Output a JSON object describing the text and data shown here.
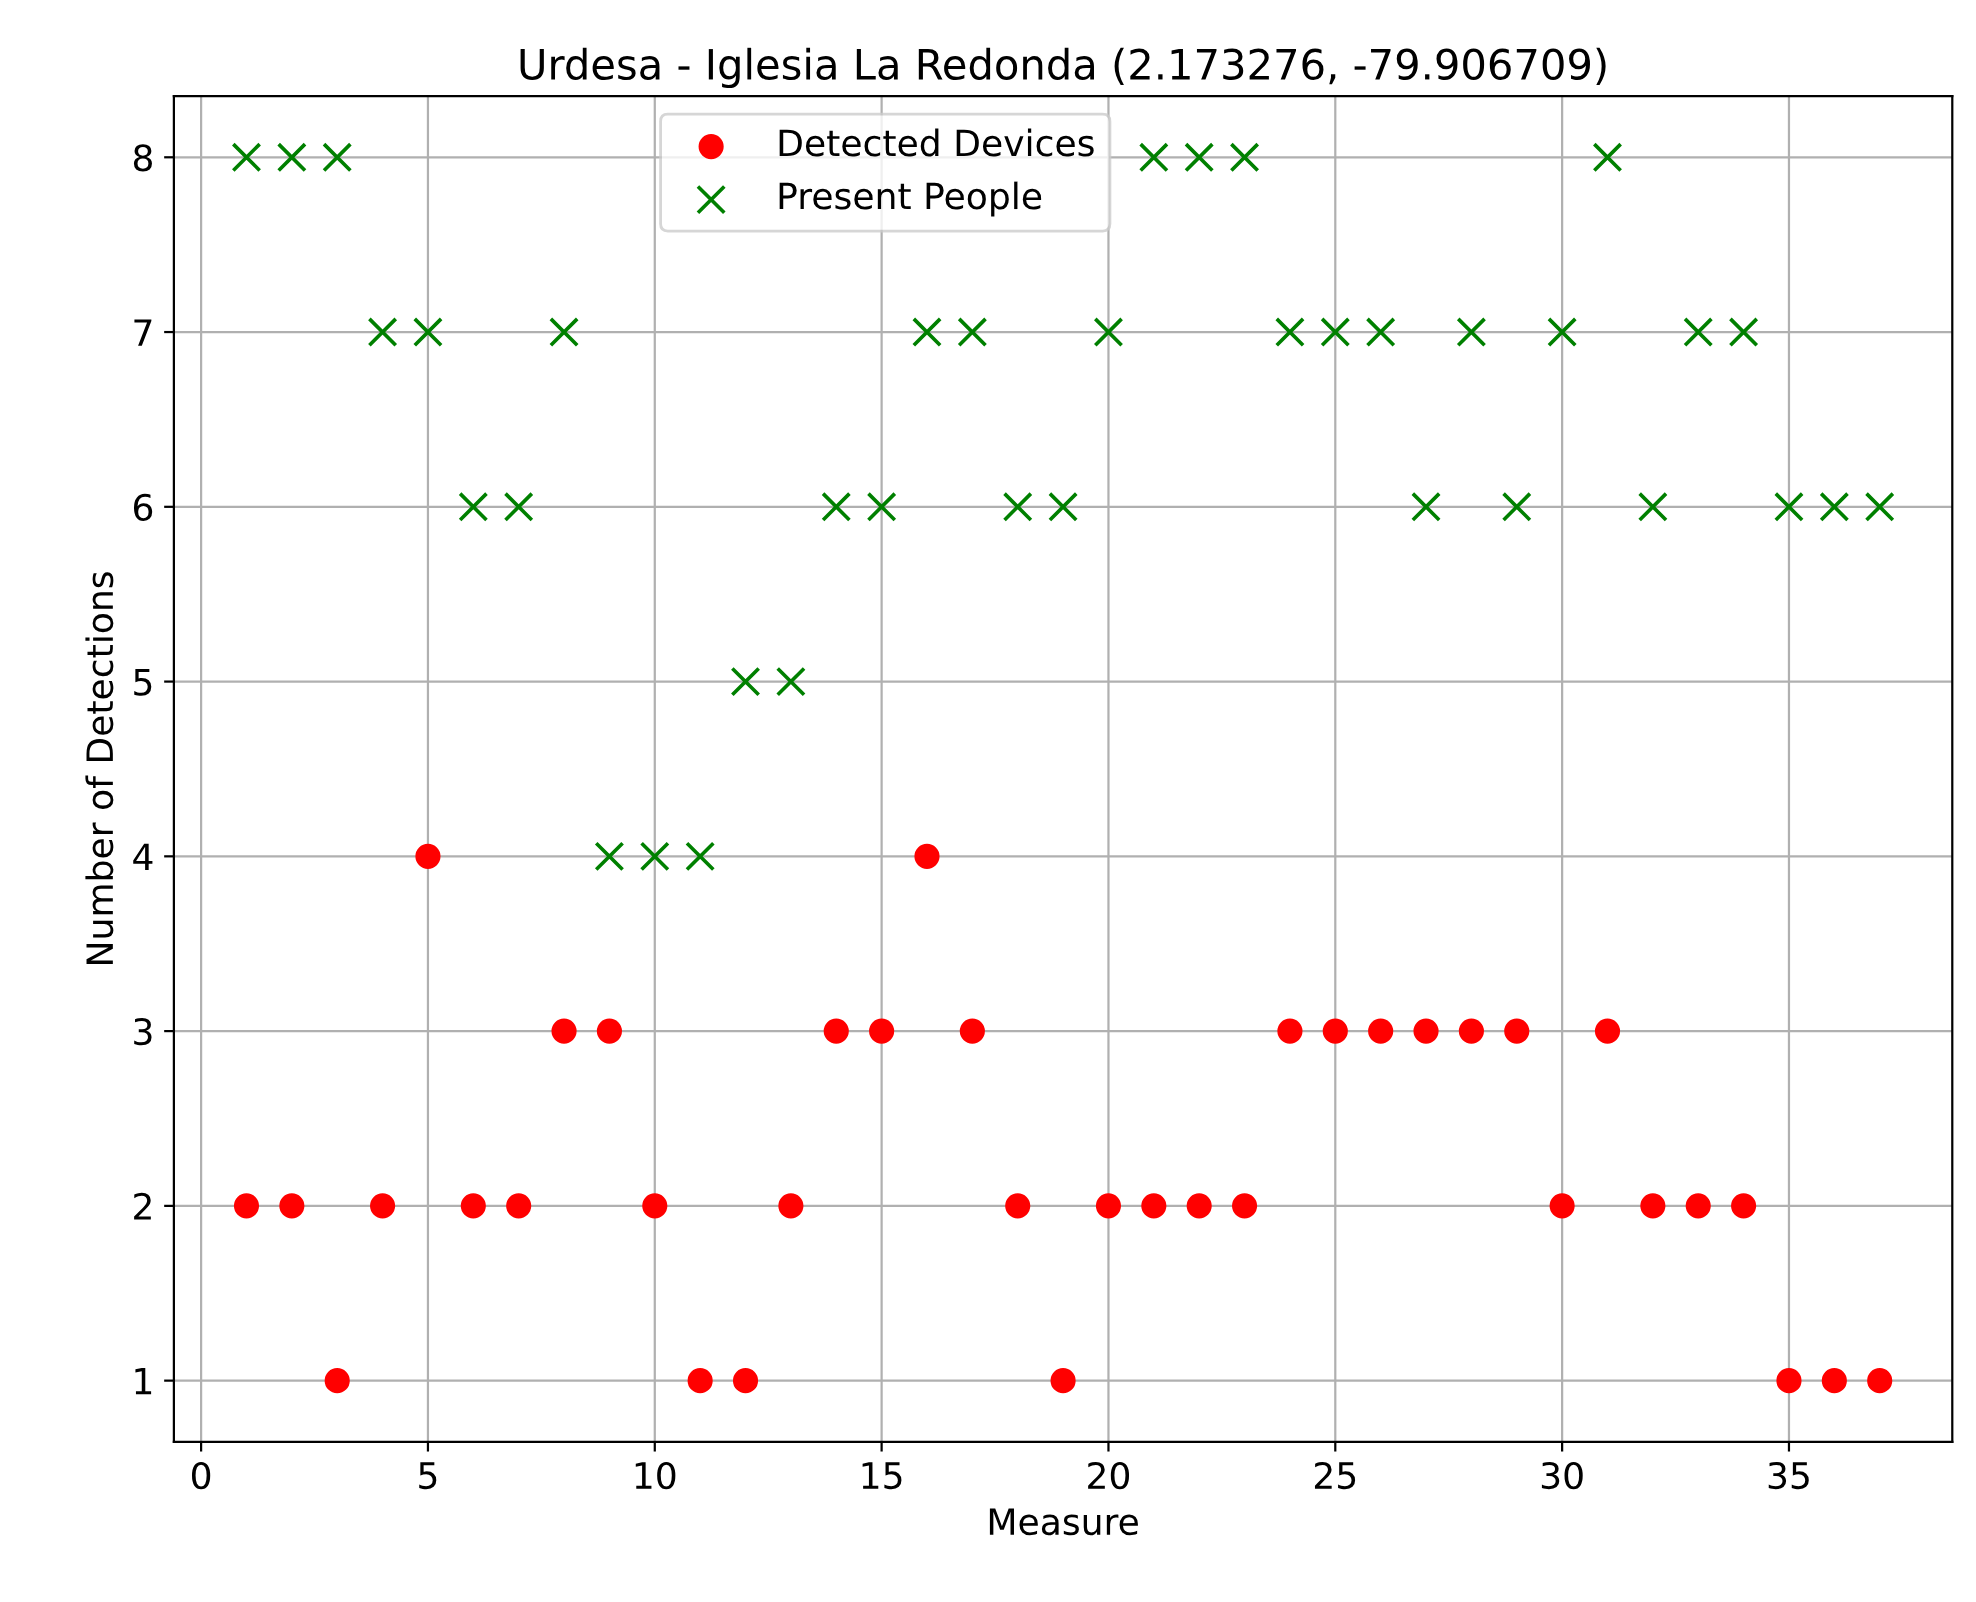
{
  "chart_data": {
    "type": "scatter",
    "title": "Urdesa - Iglesia La Redonda (2.173276, -79.906709)",
    "xlabel": "Measure",
    "ylabel": "Number of Detections",
    "x": [
      1,
      2,
      3,
      4,
      5,
      6,
      7,
      8,
      9,
      10,
      11,
      12,
      13,
      14,
      15,
      16,
      17,
      18,
      19,
      20,
      21,
      22,
      23,
      24,
      25,
      26,
      27,
      28,
      29,
      30,
      31,
      32,
      33,
      34,
      35,
      36,
      37
    ],
    "series": [
      {
        "name": "Detected Devices",
        "color": "#ff0000",
        "marker": "circle",
        "values": [
          2,
          2,
          1,
          2,
          4,
          2,
          2,
          3,
          3,
          2,
          1,
          1,
          2,
          3,
          3,
          4,
          3,
          2,
          1,
          2,
          2,
          2,
          2,
          3,
          3,
          3,
          3,
          3,
          3,
          2,
          3,
          2,
          2,
          2,
          1,
          1,
          1
        ]
      },
      {
        "name": "Present People",
        "color": "#008000",
        "marker": "cross",
        "values": [
          8,
          8,
          8,
          7,
          7,
          6,
          6,
          7,
          4,
          4,
          4,
          5,
          5,
          6,
          6,
          7,
          7,
          6,
          6,
          7,
          8,
          8,
          8,
          7,
          7,
          7,
          6,
          7,
          6,
          7,
          8,
          6,
          7,
          7,
          6,
          6,
          6
        ]
      }
    ],
    "xlim": [
      -0.6,
      38.6
    ],
    "xticks": [
      0,
      5,
      10,
      15,
      20,
      25,
      30,
      35
    ],
    "ylim": [
      0.65,
      8.35
    ],
    "yticks": [
      1,
      2,
      3,
      4,
      5,
      6,
      7,
      8
    ],
    "grid": true,
    "legend": "top"
  }
}
